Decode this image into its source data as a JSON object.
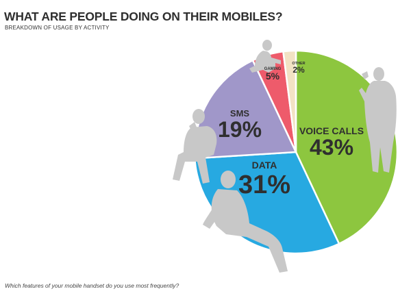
{
  "title": "WHAT ARE PEOPLE DOING ON THEIR MOBILES?",
  "subtitle": "BREAKDOWN OF USAGE BY ACTIVITY",
  "footer": "Which features of your mobile handset do you use most frequently?",
  "chart_data": {
    "type": "pie",
    "title": "WHAT ARE PEOPLE DOING ON THEIR MOBILES?",
    "subtitle": "BREAKDOWN OF USAGE BY ACTIVITY",
    "unit": "%",
    "start_angle_deg": 0,
    "direction": "clockwise",
    "slices": [
      {
        "label": "VOICE CALLS",
        "value": 43,
        "display": "43%",
        "color": "#8dc63f"
      },
      {
        "label": "DATA",
        "value": 31,
        "display": "31%",
        "color": "#27a9e1"
      },
      {
        "label": "SMS",
        "value": 19,
        "display": "19%",
        "color": "#a097c9"
      },
      {
        "label": "GAMING",
        "value": 5,
        "display": "5%",
        "color": "#ee5b6b"
      },
      {
        "label": "OTHER",
        "value": 2,
        "display": "2%",
        "color": "#f2e2c4"
      }
    ],
    "illustration_color": "#c8c8c8",
    "illustrations": [
      "person-standing-phone-icon",
      "person-sitting-phone-icon",
      "person-reclining-phone-icon",
      "person-sitting-top-icon"
    ]
  }
}
